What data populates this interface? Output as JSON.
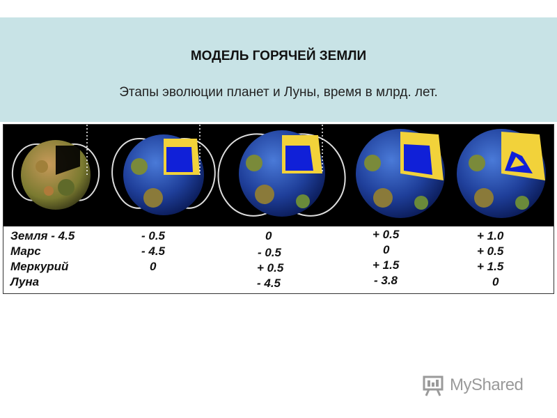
{
  "slide": {
    "title": "МОДЕЛЬ ГОРЯЧЕЙ ЗЕМЛИ",
    "subtitle": "Этапы эволюции планет и Луны, время в млрд. лет."
  },
  "table": {
    "rows": [
      {
        "label": "Земля  - 4.5",
        "c1": "- 0.5",
        "c2": "0",
        "c3": "+ 0.5",
        "c4": "+ 1.0"
      },
      {
        "label": "Марс",
        "c1": "- 4.5",
        "c2": "- 0.5",
        "c3": "0",
        "c4": "+ 0.5"
      },
      {
        "label": "Меркурий",
        "c1": "0",
        "c2": "+ 0.5",
        "c3": "+ 1.5",
        "c4": "+ 1.5"
      },
      {
        "label": "Луна",
        "c1": "",
        "c2": "- 4.5",
        "c3": "- 3.8",
        "c4": "0"
      }
    ]
  },
  "watermark": {
    "text": "MyShared"
  },
  "colors": {
    "header_bg": "#c8e3e6",
    "core_blue": "#1020d8",
    "mantle_yellow": "#f2d23a",
    "ocean": "#1f3f9a",
    "land": "#7a8a3a"
  }
}
